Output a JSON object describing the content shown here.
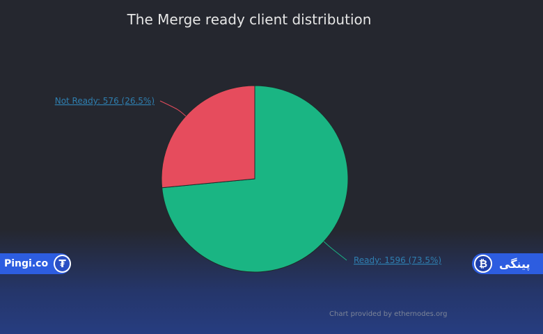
{
  "chart_data": {
    "type": "pie",
    "title": "The Merge ready client distribution",
    "slices": [
      {
        "name": "Ready",
        "value": 1596,
        "percent": 73.5,
        "color": "#1ab583",
        "label": "Ready: 1596 (73.5%)"
      },
      {
        "name": "Not Ready",
        "value": 576,
        "percent": 26.5,
        "color": "#e64c5d",
        "label": "Not Ready: 576 (26.5%)"
      }
    ],
    "credit": "Chart provided by ethernodes.org"
  },
  "watermarks": {
    "left": {
      "text": "Pingi.co",
      "icon": "tether-icon",
      "icon_glyph": "₮"
    },
    "right": {
      "text": "پینگی",
      "icon": "bitcoin-icon",
      "icon_glyph": "₿"
    }
  },
  "colors": {
    "background": "#25272f",
    "label_link": "#2f7fb0",
    "badge": "#2d5de0"
  }
}
